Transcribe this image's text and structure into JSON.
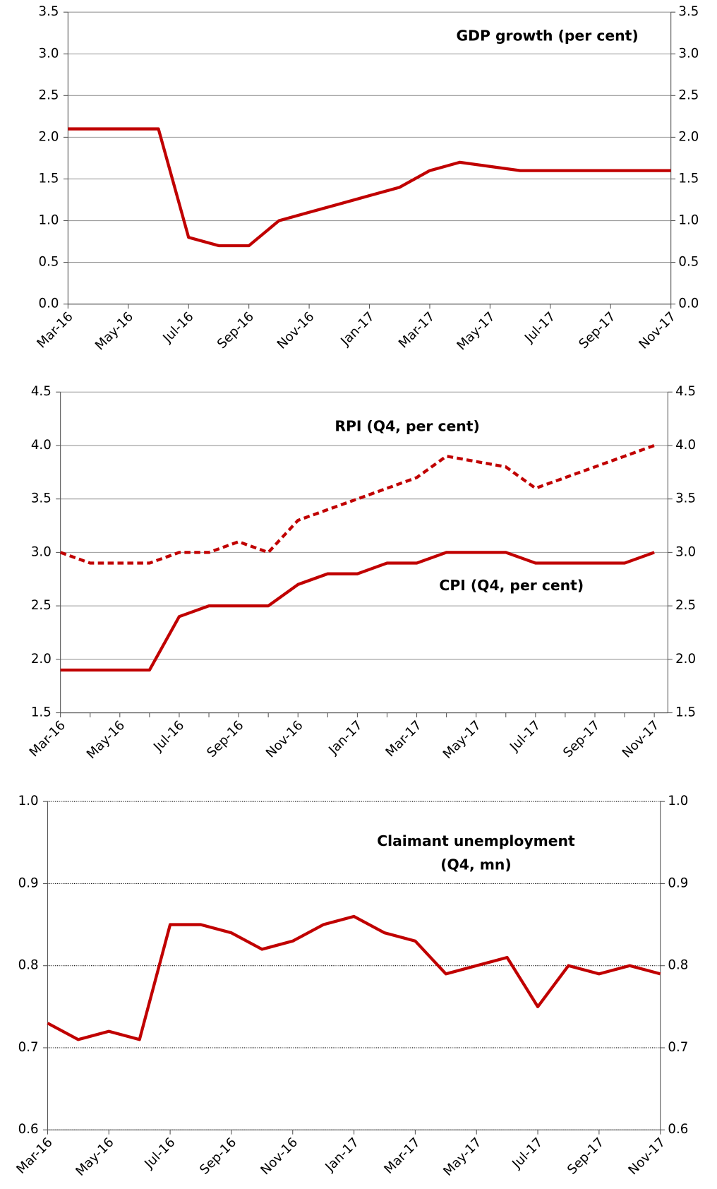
{
  "chart_data": [
    {
      "type": "line",
      "title": "GDP growth (per cent)",
      "categories": [
        "Mar-16",
        null,
        "May-16",
        null,
        "Jul-16",
        null,
        "Sep-16",
        null,
        "Nov-16",
        null,
        "Jan-17",
        null,
        "Mar-17",
        null,
        "May-17",
        null,
        "Jul-17",
        null,
        "Sep-17",
        null,
        "Nov-17"
      ],
      "series": [
        {
          "color": "#c00000",
          "style": "solid",
          "values": [
            2.1,
            2.1,
            2.1,
            2.1,
            0.8,
            0.7,
            0.7,
            1.0,
            1.1,
            1.2,
            1.3,
            1.4,
            1.6,
            1.7,
            1.65,
            1.6,
            1.6,
            1.6,
            1.6,
            1.6,
            1.6
          ]
        }
      ],
      "ylim": [
        0,
        3.5
      ],
      "yticks": [
        {
          "value": 0,
          "label": "0.0"
        },
        0.5,
        {
          "value": 1,
          "label": "1.0"
        },
        1.5,
        {
          "value": 2,
          "label": "2.0"
        },
        2.5,
        {
          "value": 3,
          "label": "3.0"
        },
        3.5
      ],
      "y2lim": [
        0,
        3.5
      ],
      "y2ticks": [
        {
          "value": 0,
          "label": "0.0"
        },
        0.5,
        {
          "value": 1,
          "label": "1.0"
        },
        1.5,
        {
          "value": 2,
          "label": "2.0"
        },
        2.5,
        {
          "value": 3,
          "label": "3.0"
        },
        3.5
      ],
      "grid": true
    },
    {
      "type": "line",
      "categories": [
        "Mar-16",
        null,
        "May-16",
        null,
        "Jul-16",
        null,
        "Sep-16",
        null,
        "Nov-16",
        null,
        "Jan-17",
        null,
        "Mar-17",
        null,
        "May-17",
        null,
        "Jul-17",
        null,
        "Sep-17",
        null,
        "Nov-17"
      ],
      "series": [
        {
          "name": "RPI (Q4, per cent)",
          "color": "#c00000",
          "style": "dashed",
          "values": [
            3.0,
            2.9,
            2.9,
            2.9,
            3.0,
            3.0,
            3.1,
            3.0,
            3.3,
            3.4,
            3.5,
            3.6,
            3.7,
            3.9,
            3.85,
            3.8,
            3.6,
            3.7,
            3.8,
            3.9,
            4.0
          ]
        },
        {
          "name": "CPI (Q4, per cent)",
          "color": "#c00000",
          "style": "solid",
          "values": [
            1.9,
            1.9,
            1.9,
            1.9,
            2.4,
            2.5,
            2.5,
            2.5,
            2.7,
            2.8,
            2.8,
            2.9,
            2.9,
            3.0,
            3.0,
            3.0,
            2.9,
            2.9,
            2.9,
            2.9,
            3.0
          ]
        }
      ],
      "ylim": [
        1.5,
        4.5
      ],
      "yticks": [
        1.5,
        {
          "value": 2,
          "label": "2.0"
        },
        2.5,
        {
          "value": 3,
          "label": "3.0"
        },
        3.5,
        {
          "value": 4,
          "label": "4.0"
        },
        4.5
      ],
      "y2lim": [
        1.5,
        4.5
      ],
      "y2ticks": [
        1.5,
        {
          "value": 2,
          "label": "2.0"
        },
        2.5,
        {
          "value": 3,
          "label": "3.0"
        },
        3.5,
        {
          "value": 4,
          "label": "4.0"
        },
        4.5
      ],
      "grid": true
    },
    {
      "type": "line",
      "title": [
        "Claimant unemployment",
        "(Q4, mn)"
      ],
      "categories": [
        "Mar-16",
        null,
        "May-16",
        null,
        "Jul-16",
        null,
        "Sep-16",
        null,
        "Nov-16",
        null,
        "Jan-17",
        null,
        "Mar-17",
        null,
        "May-17",
        null,
        "Jul-17",
        null,
        "Sep-17",
        null,
        "Nov-17"
      ],
      "series": [
        {
          "color": "#c00000",
          "style": "solid",
          "values": [
            0.73,
            0.71,
            0.72,
            0.71,
            0.85,
            0.85,
            0.84,
            0.82,
            0.83,
            0.85,
            0.86,
            0.84,
            0.83,
            0.79,
            0.8,
            0.81,
            0.75,
            0.8,
            0.79,
            0.8,
            0.79
          ]
        }
      ],
      "ylim": [
        0.6,
        1.0
      ],
      "yticks": [
        0.6,
        0.7,
        0.8,
        0.9,
        {
          "value": 1,
          "label": "1.0"
        }
      ],
      "y2lim": [
        0.6,
        1.0
      ],
      "y2ticks": [
        0.6,
        0.7,
        0.8,
        0.9,
        {
          "value": 1,
          "label": "1.0"
        }
      ],
      "grid": true
    }
  ]
}
